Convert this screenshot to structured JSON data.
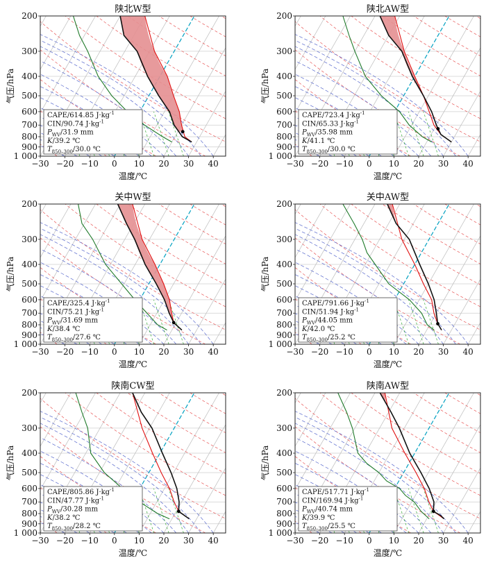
{
  "axes": {
    "xlabel": "温度/℃",
    "ylabel": "气压/hPa",
    "xlim": [
      -30,
      45
    ],
    "p_top": 200,
    "p_bottom": 1000,
    "xticks": [
      -30,
      -20,
      -10,
      0,
      10,
      20,
      30,
      40
    ],
    "yticks": [
      {
        "p": 200,
        "label": "200"
      },
      {
        "p": 300,
        "label": "300"
      },
      {
        "p": 400,
        "label": "400"
      },
      {
        "p": 500,
        "label": "500"
      },
      {
        "p": 600,
        "label": "600"
      },
      {
        "p": 700,
        "label": "700"
      },
      {
        "p": 800,
        "label": "800"
      },
      {
        "p": 900,
        "label": "900"
      },
      {
        "p": 1000,
        "label": "1 000"
      }
    ]
  },
  "colors": {
    "environment": "#111111",
    "parcel": "#e01010",
    "dewpoint": "#1f7a2a",
    "cape_fill": "#e48f91",
    "cin_fill": "#9fb8d8",
    "dry_adiabat": "#e85555",
    "moist_adiabat": "#5566cc",
    "mixing_ratio": "#33aa33",
    "isotherm": "#bbbbbb",
    "zero_isotherm": "#00a0c0"
  },
  "chart_data": [
    {
      "type": "line",
      "title": "陕北W型",
      "indices": {
        "cape": "CAPE/614.85 J·kg",
        "cin": "CIN/90.74 J·kg",
        "pwv_value": "/31.9 mm",
        "k": "/39.2 ℃",
        "t850_value": "/30.0 ℃"
      },
      "environment": [
        [
          200,
          -30
        ],
        [
          250,
          -24
        ],
        [
          300,
          -15
        ],
        [
          400,
          -5
        ],
        [
          500,
          4
        ],
        [
          600,
          12
        ],
        [
          700,
          17
        ],
        [
          800,
          23
        ],
        [
          850,
          28
        ]
      ],
      "dewpoint": [
        [
          200,
          -49
        ],
        [
          250,
          -42
        ],
        [
          300,
          -35
        ],
        [
          400,
          -25
        ],
        [
          500,
          -15
        ],
        [
          600,
          -5
        ],
        [
          700,
          5
        ],
        [
          800,
          15
        ],
        [
          850,
          20
        ]
      ],
      "parcel": [
        [
          200,
          -20
        ],
        [
          300,
          -8
        ],
        [
          400,
          3
        ],
        [
          500,
          10
        ],
        [
          600,
          16
        ],
        [
          700,
          20
        ],
        [
          800,
          24
        ],
        [
          850,
          28
        ]
      ],
      "lfc_marker": [
        755,
        22
      ]
    },
    {
      "type": "line",
      "title": "陕北AW型",
      "indices": {
        "cape": "CAPE/723.4 J·kg",
        "cin": "CIN/65.33 J·kg",
        "pwv_value": "/35.98 mm",
        "k": "/41.1 ℃",
        "t850_value": "/30.0 ℃"
      },
      "environment": [
        [
          200,
          -28
        ],
        [
          250,
          -20
        ],
        [
          300,
          -11
        ],
        [
          400,
          -1
        ],
        [
          500,
          8
        ],
        [
          600,
          15
        ],
        [
          700,
          20
        ],
        [
          780,
          24
        ],
        [
          850,
          30
        ]
      ],
      "dewpoint": [
        [
          200,
          -43
        ],
        [
          250,
          -36
        ],
        [
          300,
          -30
        ],
        [
          400,
          -20
        ],
        [
          500,
          -9
        ],
        [
          600,
          2
        ],
        [
          700,
          9
        ],
        [
          800,
          17
        ],
        [
          850,
          22
        ]
      ],
      "parcel": [
        [
          200,
          -22
        ],
        [
          300,
          -10
        ],
        [
          400,
          0
        ],
        [
          500,
          8
        ],
        [
          600,
          14
        ],
        [
          700,
          19
        ],
        [
          780,
          24
        ],
        [
          850,
          30
        ]
      ],
      "lfc_marker": [
        730,
        21.5
      ]
    },
    {
      "type": "line",
      "title": "关中W型",
      "indices": {
        "cape": "CAPE/325.4 J·kg",
        "cin": "CIN/75.21 J·kg",
        "pwv_value": "/31.69 mm",
        "k": "/38.4 ℃",
        "t850_value": "/27.6 ℃"
      },
      "environment": [
        [
          200,
          -31
        ],
        [
          250,
          -23
        ],
        [
          300,
          -16
        ],
        [
          400,
          -6
        ],
        [
          500,
          3
        ],
        [
          600,
          10
        ],
        [
          700,
          15
        ],
        [
          780,
          19
        ],
        [
          850,
          24
        ]
      ],
      "dewpoint": [
        [
          200,
          -47
        ],
        [
          250,
          -41
        ],
        [
          300,
          -33
        ],
        [
          400,
          -22
        ],
        [
          500,
          -11
        ],
        [
          600,
          -2
        ],
        [
          700,
          6
        ],
        [
          800,
          13
        ],
        [
          850,
          18
        ]
      ],
      "parcel": [
        [
          200,
          -25
        ],
        [
          300,
          -13
        ],
        [
          400,
          -2
        ],
        [
          500,
          6
        ],
        [
          600,
          12
        ],
        [
          700,
          16
        ],
        [
          780,
          19
        ],
        [
          850,
          24
        ]
      ],
      "lfc_marker": [
        780,
        19
      ]
    },
    {
      "type": "line",
      "title": "关中AW型",
      "indices": {
        "cape": "CAPE/791.66 J·kg",
        "cin": "CIN/51.94 J·kg",
        "pwv_value": "/44.05 mm",
        "k": "/42.0 ℃",
        "t850_value": "/25.2 ℃"
      },
      "environment": [
        [
          200,
          -25
        ],
        [
          250,
          -17
        ],
        [
          300,
          -8
        ],
        [
          400,
          2
        ],
        [
          500,
          10
        ],
        [
          600,
          16
        ],
        [
          700,
          20
        ],
        [
          790,
          23
        ],
        [
          850,
          26
        ]
      ],
      "dewpoint": [
        [
          200,
          -43
        ],
        [
          250,
          -34
        ],
        [
          300,
          -27
        ],
        [
          350,
          -22
        ],
        [
          400,
          -16
        ],
        [
          500,
          -6
        ],
        [
          600,
          6
        ],
        [
          700,
          14
        ],
        [
          800,
          19
        ],
        [
          850,
          23
        ]
      ],
      "parcel": [
        [
          200,
          -23
        ],
        [
          300,
          -11
        ],
        [
          400,
          0
        ],
        [
          500,
          8
        ],
        [
          600,
          15
        ],
        [
          700,
          19
        ],
        [
          790,
          23
        ],
        [
          850,
          26
        ]
      ],
      "lfc_marker": [
        790,
        23
      ]
    },
    {
      "type": "line",
      "title": "陕南CW型",
      "indices": {
        "cape": "CAPE/805.86 J·kg",
        "cin": "CIN/47.77 J·kg",
        "pwv_value": "/30.28 mm",
        "k": "/38.2 ℃",
        "t850_value": "/28.2 ℃"
      },
      "environment": [
        [
          200,
          -25
        ],
        [
          250,
          -17
        ],
        [
          300,
          -9
        ],
        [
          400,
          1
        ],
        [
          500,
          9
        ],
        [
          600,
          15
        ],
        [
          700,
          19
        ],
        [
          780,
          21
        ],
        [
          850,
          27
        ]
      ],
      "dewpoint": [
        [
          200,
          -48
        ],
        [
          250,
          -41
        ],
        [
          300,
          -35
        ],
        [
          400,
          -28
        ],
        [
          500,
          -18
        ],
        [
          600,
          -7
        ],
        [
          700,
          3
        ],
        [
          800,
          13
        ],
        [
          850,
          19
        ]
      ],
      "parcel": [
        [
          200,
          -25
        ],
        [
          300,
          -13
        ],
        [
          400,
          -3
        ],
        [
          500,
          5
        ],
        [
          600,
          12
        ],
        [
          700,
          17
        ],
        [
          780,
          21
        ],
        [
          850,
          27
        ]
      ],
      "lfc_marker": [
        780,
        21
      ]
    },
    {
      "type": "line",
      "title": "陕南AW型",
      "indices": {
        "cape": "CAPE/517.71 J·kg",
        "cin": "CIN/169.94 J·kg",
        "pwv_value": "/40.74 mm",
        "k": "/39.9 ℃",
        "t850_value": "/25.5 ℃"
      },
      "environment": [
        [
          200,
          -28
        ],
        [
          250,
          -19
        ],
        [
          300,
          -12
        ],
        [
          400,
          -2
        ],
        [
          500,
          7
        ],
        [
          600,
          14
        ],
        [
          700,
          19
        ],
        [
          780,
          21
        ],
        [
          820,
          25
        ],
        [
          850,
          27
        ]
      ],
      "dewpoint": [
        [
          200,
          -45
        ],
        [
          250,
          -37
        ],
        [
          300,
          -31
        ],
        [
          400,
          -23
        ],
        [
          450,
          -17
        ],
        [
          500,
          -10
        ],
        [
          550,
          -5
        ],
        [
          600,
          2
        ],
        [
          650,
          6
        ],
        [
          700,
          11
        ],
        [
          780,
          16
        ],
        [
          850,
          21
        ]
      ],
      "parcel": [
        [
          200,
          -26
        ],
        [
          300,
          -15
        ],
        [
          400,
          -4
        ],
        [
          500,
          5
        ],
        [
          600,
          12
        ],
        [
          700,
          17
        ],
        [
          780,
          21
        ],
        [
          850,
          27
        ]
      ],
      "lfc_marker": [
        780,
        21
      ]
    }
  ]
}
